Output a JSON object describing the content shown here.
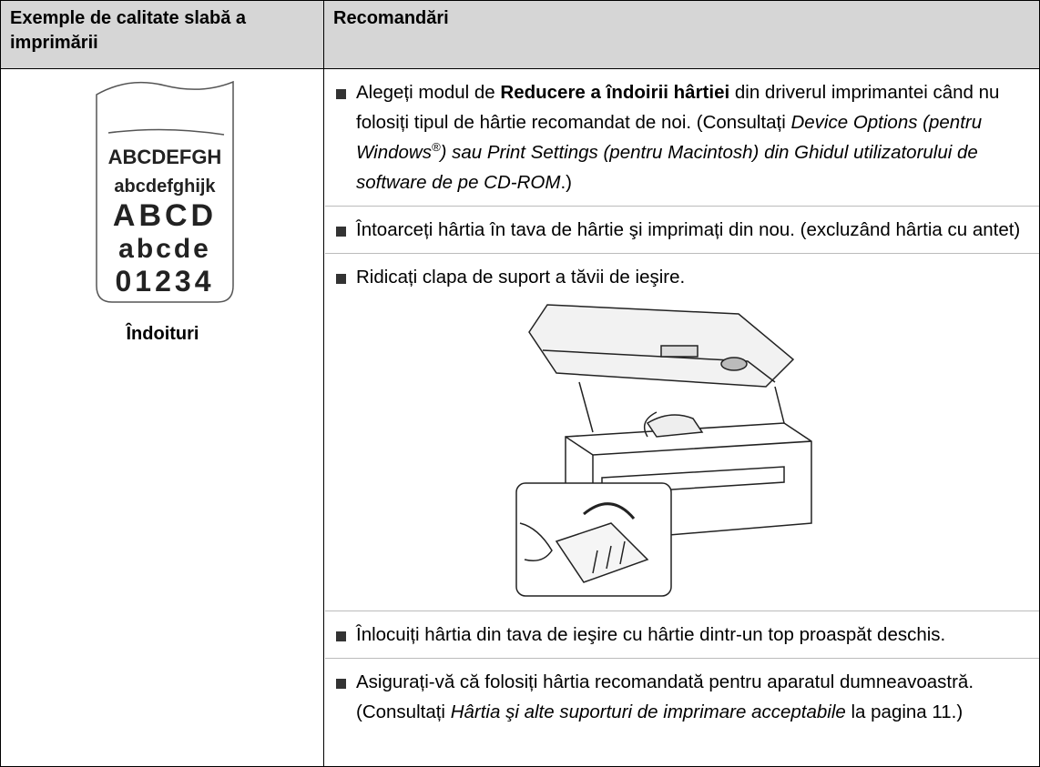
{
  "table": {
    "headers": [
      "Exemple de calitate slabă a imprimării",
      "Recomandări"
    ],
    "rows": [
      {
        "example": {
          "sample_lines": [
            "ABCDEFGH",
            "abcdefghijk",
            "ABCD",
            "abcde",
            "01234"
          ],
          "caption": "Îndoituri"
        },
        "recommendations": [
          [
            {
              "text": "Alegeți modul de "
            },
            {
              "bold": "Reducere a îndoirii hârtiei"
            },
            {
              "text": " din driverul imprimantei când nu folosiți tipul de hârtie recomandat de noi. (Consultați "
            },
            {
              "italic": "Device Options (pentru Windows"
            },
            {
              "sup": "®"
            },
            {
              "italic": ") sau Print Settings (pentru Macintosh) din Ghidul utilizatorului de software de pe CD-ROM"
            },
            {
              "text": ".)"
            }
          ],
          [
            {
              "text": "Întoarceți hârtia în tava de hârtie şi imprimați din nou. (excluzând hârtia cu antet)"
            }
          ],
          [
            {
              "text": "Ridicați clapa de suport a tăvii de ieşire."
            }
          ],
          [
            {
              "text": "Înlocuiți hârtia din tava de ieşire cu hârtie dintr-un top proaspăt deschis."
            }
          ],
          [
            {
              "text": "Asigurați-vă că folosiți hârtia recomandată pentru aparatul dumneavoastră. (Consultați "
            },
            {
              "italic": "Hârtia şi alte suporturi de imprimare acceptabile"
            },
            {
              "text": " la pagina 11.)"
            }
          ]
        ]
      }
    ]
  }
}
